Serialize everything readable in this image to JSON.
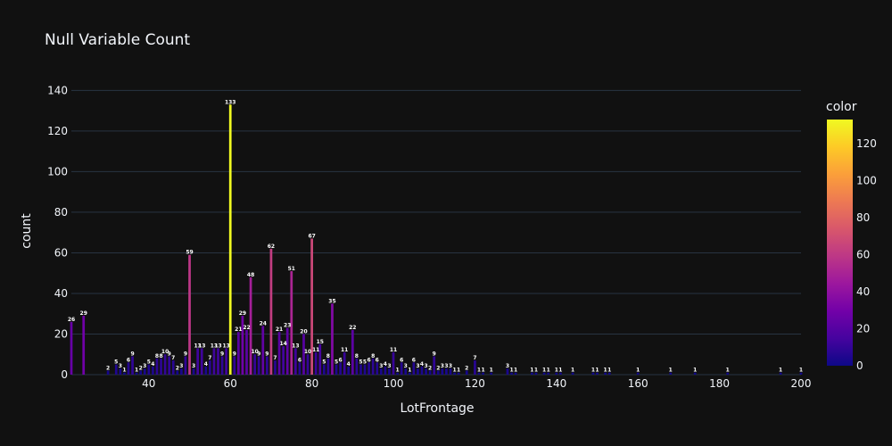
{
  "chart_data": {
    "type": "bar",
    "title": "Null Variable Count",
    "xlabel": "LotFrontage",
    "ylabel": "count",
    "xlim": [
      21,
      200
    ],
    "ylim": [
      0,
      145
    ],
    "x_ticks": [
      40,
      60,
      80,
      100,
      120,
      140,
      160,
      180,
      200
    ],
    "y_ticks": [
      0,
      20,
      40,
      60,
      80,
      100,
      120,
      140
    ],
    "colorbar": {
      "title": "color",
      "range": [
        0,
        133
      ],
      "ticks": [
        0,
        20,
        40,
        60,
        80,
        100,
        120
      ],
      "colorscale": [
        "#0d0887",
        "#46039f",
        "#7201a8",
        "#9c179e",
        "#bd3786",
        "#d8576b",
        "#ed7953",
        "#fb9f3a",
        "#fdca26",
        "#f0f921"
      ]
    },
    "x": [
      21,
      24,
      30,
      32,
      33,
      34,
      35,
      36,
      37,
      38,
      39,
      40,
      41,
      42,
      43,
      44,
      45,
      46,
      47,
      48,
      49,
      50,
      51,
      52,
      53,
      54,
      55,
      56,
      57,
      58,
      59,
      60,
      61,
      62,
      63,
      64,
      65,
      66,
      67,
      68,
      69,
      70,
      71,
      72,
      73,
      74,
      75,
      76,
      77,
      78,
      79,
      80,
      81,
      82,
      83,
      84,
      85,
      86,
      87,
      88,
      89,
      90,
      91,
      92,
      93,
      94,
      95,
      96,
      97,
      98,
      99,
      100,
      101,
      102,
      103,
      104,
      105,
      106,
      107,
      108,
      109,
      110,
      111,
      112,
      113,
      114,
      115,
      116,
      118,
      120,
      121,
      122,
      124,
      128,
      129,
      130,
      134,
      135,
      137,
      138,
      140,
      141,
      144,
      149,
      150,
      152,
      153,
      160,
      168,
      174,
      182,
      195,
      200
    ],
    "values": [
      26,
      29,
      2,
      5,
      3,
      1,
      6,
      9,
      1,
      2,
      3,
      5,
      4,
      8,
      8,
      10,
      9,
      7,
      2,
      3,
      9,
      59,
      3,
      13,
      13,
      4,
      7,
      13,
      13,
      9,
      13,
      133,
      9,
      21,
      29,
      22,
      48,
      10,
      9,
      24,
      9,
      62,
      7,
      21,
      14,
      23,
      51,
      13,
      6,
      20,
      10,
      67,
      11,
      15,
      5,
      8,
      35,
      5,
      6,
      11,
      4,
      22,
      8,
      5,
      5,
      6,
      8,
      6,
      3,
      4,
      3,
      11,
      1,
      6,
      3,
      1,
      6,
      3,
      4,
      3,
      2,
      9,
      2,
      3,
      3,
      3,
      1,
      1,
      2,
      7,
      1,
      1,
      1,
      3,
      1,
      1,
      1,
      1,
      1,
      1,
      1,
      1,
      1,
      1,
      1,
      1,
      1,
      1,
      1,
      1,
      1,
      1,
      1
    ]
  }
}
